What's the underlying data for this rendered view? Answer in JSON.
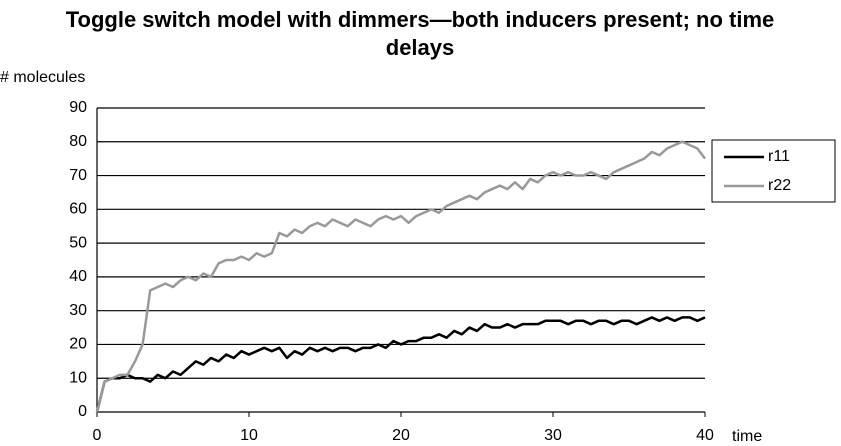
{
  "chart_data": {
    "type": "line",
    "title": "Toggle switch model with dimmers—both inducers present; no time delays",
    "x_label": "time",
    "y_label": "# molecules",
    "x": [
      0,
      0.5,
      1,
      1.5,
      2,
      2.5,
      3,
      3.5,
      4,
      4.5,
      5,
      5.5,
      6,
      6.5,
      7,
      7.5,
      8,
      8.5,
      9,
      9.5,
      10,
      10.5,
      11,
      11.5,
      12,
      12.5,
      13,
      13.5,
      14,
      14.5,
      15,
      15.5,
      16,
      16.5,
      17,
      17.5,
      18,
      18.5,
      19,
      19.5,
      20,
      20.5,
      21,
      21.5,
      22,
      22.5,
      23,
      23.5,
      24,
      24.5,
      25,
      25.5,
      26,
      26.5,
      27,
      27.5,
      28,
      28.5,
      29,
      29.5,
      30,
      30.5,
      31,
      31.5,
      32,
      32.5,
      33,
      33.5,
      34,
      34.5,
      35,
      35.5,
      36,
      36.5,
      37,
      37.5,
      38,
      38.5,
      39,
      39.5,
      40
    ],
    "series": [
      {
        "name": "r11",
        "color": "#000000",
        "values": [
          0,
          9,
          10,
          10,
          11,
          10,
          10,
          9,
          11,
          10,
          12,
          11,
          13,
          15,
          14,
          16,
          15,
          17,
          16,
          18,
          17,
          18,
          19,
          18,
          19,
          16,
          18,
          17,
          19,
          18,
          19,
          18,
          19,
          19,
          18,
          19,
          19,
          20,
          19,
          21,
          20,
          21,
          21,
          22,
          22,
          23,
          22,
          24,
          23,
          25,
          24,
          26,
          25,
          25,
          26,
          25,
          26,
          26,
          26,
          27,
          27,
          27,
          26,
          27,
          27,
          26,
          27,
          27,
          26,
          27,
          27,
          26,
          27,
          28,
          27,
          28,
          27,
          28,
          28,
          27,
          28
        ]
      },
      {
        "name": "r22",
        "color": "#999999",
        "values": [
          0,
          9,
          10,
          11,
          11,
          15,
          20,
          36,
          37,
          38,
          37,
          39,
          40,
          39,
          41,
          40,
          44,
          45,
          45,
          46,
          45,
          47,
          46,
          47,
          53,
          52,
          54,
          53,
          55,
          56,
          55,
          57,
          56,
          55,
          57,
          56,
          55,
          57,
          58,
          57,
          58,
          56,
          58,
          59,
          60,
          59,
          61,
          62,
          63,
          64,
          63,
          65,
          66,
          67,
          66,
          68,
          66,
          69,
          68,
          70,
          71,
          70,
          71,
          70,
          70,
          71,
          70,
          69,
          71,
          72,
          73,
          74,
          75,
          77,
          76,
          78,
          79,
          80,
          79,
          78,
          75
        ]
      }
    ],
    "xlim": [
      0,
      40
    ],
    "xticks": [
      0,
      10,
      20,
      30,
      40
    ],
    "ylim": [
      0,
      90
    ],
    "yticks": [
      0,
      10,
      20,
      30,
      40,
      50,
      60,
      70,
      80,
      90
    ],
    "grid": true,
    "legend": "right"
  }
}
